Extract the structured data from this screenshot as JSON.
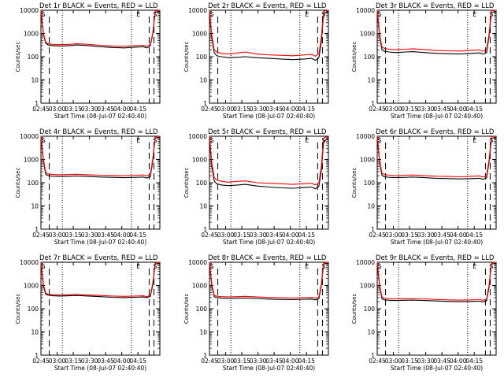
{
  "chart_data": [
    {
      "type": "line",
      "title": "Det 1r BLACK = Events, RED = LLD",
      "xlabel": "Start Time (08-Jul-07 02:40:40)",
      "ylabel": "Counts/sec",
      "xlim": [
        0,
        100
      ],
      "ylim": [
        1,
        10000
      ],
      "yscale": "log",
      "x_ticks": [
        "02:45",
        "03:00",
        "03:15",
        "03:30",
        "03:45",
        "04:00",
        "04:15"
      ],
      "y_ticks": [
        "1",
        "10",
        "100",
        "1000",
        "10000"
      ],
      "grid": false,
      "legend": "none",
      "markers": [
        "S",
        "E",
        "S"
      ],
      "series": [
        {
          "name": "Events",
          "color": "#000000",
          "x": [
            0,
            2,
            4,
            6,
            10,
            16,
            24,
            30,
            40,
            50,
            60,
            70,
            80,
            86,
            89,
            92,
            94,
            96,
            100
          ],
          "values": [
            9000,
            1000,
            380,
            320,
            300,
            290,
            300,
            320,
            300,
            270,
            250,
            240,
            260,
            270,
            240,
            300,
            900,
            8000,
            9000
          ]
        },
        {
          "name": "LLD",
          "color": "#ff0000",
          "x": [
            0,
            2,
            4,
            6,
            10,
            16,
            24,
            30,
            40,
            50,
            60,
            70,
            80,
            86,
            89,
            92,
            94,
            96,
            100
          ],
          "values": [
            10000,
            1100,
            420,
            360,
            340,
            330,
            340,
            360,
            340,
            310,
            290,
            280,
            300,
            310,
            280,
            340,
            1000,
            9000,
            10000
          ]
        }
      ]
    },
    {
      "type": "line",
      "title": "Det 2r BLACK = Events, RED = LLD",
      "xlabel": "Start Time (08-Jul-07 02:40:40)",
      "ylabel": "Counts/sec",
      "xlim": [
        0,
        100
      ],
      "ylim": [
        1,
        10000
      ],
      "yscale": "log",
      "x_ticks": [
        "02:45",
        "03:00",
        "03:15",
        "03:30",
        "03:45",
        "04:00",
        "04:15"
      ],
      "y_ticks": [
        "1",
        "10",
        "100",
        "1000",
        "10000"
      ],
      "grid": false,
      "legend": "none",
      "markers": [
        "S",
        "E",
        "S"
      ],
      "series": [
        {
          "name": "Events",
          "color": "#000000",
          "x": [
            0,
            2,
            4,
            6,
            10,
            16,
            24,
            30,
            40,
            50,
            60,
            70,
            80,
            86,
            89,
            92,
            94,
            96,
            100
          ],
          "values": [
            8000,
            600,
            150,
            110,
            100,
            90,
            95,
            100,
            90,
            85,
            80,
            75,
            80,
            85,
            70,
            90,
            400,
            7000,
            9000
          ]
        },
        {
          "name": "LLD",
          "color": "#ff0000",
          "x": [
            0,
            2,
            4,
            6,
            10,
            16,
            24,
            30,
            40,
            50,
            60,
            70,
            80,
            86,
            89,
            92,
            94,
            96,
            100
          ],
          "values": [
            10000,
            800,
            200,
            160,
            140,
            130,
            145,
            160,
            130,
            120,
            115,
            110,
            120,
            125,
            105,
            130,
            600,
            9000,
            10000
          ]
        }
      ]
    },
    {
      "type": "line",
      "title": "Det 3r BLACK = Events, RED = LLD",
      "xlabel": "Start Time (08-Jul-07 02:40:40)",
      "ylabel": "Counts/sec",
      "xlim": [
        0,
        100
      ],
      "ylim": [
        1,
        10000
      ],
      "yscale": "log",
      "x_ticks": [
        "02:45",
        "03:00",
        "03:15",
        "03:30",
        "03:45",
        "04:00",
        "04:15"
      ],
      "y_ticks": [
        "1",
        "10",
        "100",
        "1000",
        "10000"
      ],
      "grid": false,
      "legend": "none",
      "markers": [
        "S",
        "E",
        "S"
      ],
      "series": [
        {
          "name": "Events",
          "color": "#000000",
          "x": [
            0,
            2,
            4,
            6,
            10,
            16,
            24,
            30,
            40,
            50,
            60,
            70,
            80,
            86,
            89,
            92,
            94,
            96,
            100
          ],
          "values": [
            9000,
            800,
            200,
            170,
            160,
            150,
            160,
            165,
            150,
            140,
            135,
            130,
            140,
            145,
            130,
            150,
            700,
            8000,
            9000
          ]
        },
        {
          "name": "LLD",
          "color": "#ff0000",
          "x": [
            0,
            2,
            4,
            6,
            10,
            16,
            24,
            30,
            40,
            50,
            60,
            70,
            80,
            86,
            89,
            92,
            94,
            96,
            100
          ],
          "values": [
            10000,
            1000,
            260,
            230,
            210,
            200,
            210,
            220,
            200,
            185,
            180,
            175,
            190,
            195,
            170,
            200,
            900,
            9500,
            10000
          ]
        }
      ]
    },
    {
      "type": "line",
      "title": "Det 4r BLACK = Events, RED = LLD",
      "xlabel": "Start Time (08-Jul-07 02:40:40)",
      "ylabel": "Counts/sec",
      "xlim": [
        0,
        100
      ],
      "ylim": [
        1,
        10000
      ],
      "yscale": "log",
      "x_ticks": [
        "02:45",
        "03:00",
        "03:15",
        "03:30",
        "03:45",
        "04:00",
        "04:15"
      ],
      "y_ticks": [
        "1",
        "10",
        "100",
        "1000",
        "10000"
      ],
      "grid": false,
      "legend": "none",
      "markers": [
        "S",
        "E",
        "S"
      ],
      "series": [
        {
          "name": "Events",
          "color": "#000000",
          "x": [
            0,
            2,
            4,
            6,
            10,
            16,
            24,
            30,
            40,
            50,
            60,
            70,
            80,
            86,
            89,
            92,
            94,
            96,
            100
          ],
          "values": [
            9000,
            900,
            230,
            200,
            190,
            185,
            190,
            195,
            185,
            175,
            170,
            165,
            170,
            175,
            160,
            180,
            800,
            8500,
            9000
          ]
        },
        {
          "name": "LLD",
          "color": "#ff0000",
          "x": [
            0,
            2,
            4,
            6,
            10,
            16,
            24,
            30,
            40,
            50,
            60,
            70,
            80,
            86,
            89,
            92,
            94,
            96,
            100
          ],
          "values": [
            10000,
            1100,
            280,
            240,
            225,
            220,
            225,
            230,
            220,
            210,
            205,
            200,
            210,
            215,
            195,
            220,
            1000,
            9500,
            10000
          ]
        }
      ]
    },
    {
      "type": "line",
      "title": "Det 5r BLACK = Events, RED = LLD",
      "xlabel": "Start Time (08-Jul-07 02:40:40)",
      "ylabel": "Counts/sec",
      "xlim": [
        0,
        100
      ],
      "ylim": [
        1,
        10000
      ],
      "yscale": "log",
      "x_ticks": [
        "02:45",
        "03:00",
        "03:15",
        "03:30",
        "03:45",
        "04:00",
        "04:15"
      ],
      "y_ticks": [
        "1",
        "10",
        "100",
        "1000",
        "10000"
      ],
      "grid": false,
      "legend": "none",
      "markers": [
        "S",
        "E",
        "S"
      ],
      "series": [
        {
          "name": "Events",
          "color": "#000000",
          "x": [
            0,
            2,
            4,
            6,
            10,
            16,
            24,
            30,
            40,
            50,
            60,
            70,
            80,
            86,
            89,
            92,
            94,
            96,
            100
          ],
          "values": [
            7000,
            500,
            120,
            90,
            80,
            75,
            80,
            85,
            72,
            65,
            60,
            58,
            62,
            65,
            55,
            70,
            300,
            6000,
            8000
          ]
        },
        {
          "name": "LLD",
          "color": "#ff0000",
          "x": [
            0,
            2,
            4,
            6,
            10,
            16,
            24,
            30,
            40,
            50,
            60,
            70,
            80,
            86,
            89,
            92,
            94,
            96,
            100
          ],
          "values": [
            10000,
            700,
            170,
            130,
            115,
            105,
            115,
            120,
            100,
            95,
            90,
            85,
            90,
            95,
            80,
            100,
            450,
            8500,
            10000
          ]
        }
      ]
    },
    {
      "type": "line",
      "title": "Det 6r BLACK = Events, RED = LLD",
      "xlabel": "Start Time (08-Jul-07 02:40:40)",
      "ylabel": "Counts/sec",
      "xlim": [
        0,
        100
      ],
      "ylim": [
        1,
        10000
      ],
      "yscale": "log",
      "x_ticks": [
        "02:45",
        "03:00",
        "03:15",
        "03:30",
        "03:45",
        "04:00",
        "04:15"
      ],
      "y_ticks": [
        "1",
        "10",
        "100",
        "1000",
        "10000"
      ],
      "grid": false,
      "legend": "none",
      "markers": [
        "S",
        "E",
        "S"
      ],
      "series": [
        {
          "name": "Events",
          "color": "#000000",
          "x": [
            0,
            2,
            4,
            6,
            10,
            16,
            24,
            30,
            40,
            50,
            60,
            70,
            80,
            86,
            89,
            92,
            94,
            96,
            100
          ],
          "values": [
            9000,
            800,
            210,
            180,
            170,
            165,
            170,
            175,
            165,
            155,
            150,
            145,
            150,
            155,
            140,
            160,
            700,
            8000,
            9000
          ]
        },
        {
          "name": "LLD",
          "color": "#ff0000",
          "x": [
            0,
            2,
            4,
            6,
            10,
            16,
            24,
            30,
            40,
            50,
            60,
            70,
            80,
            86,
            89,
            92,
            94,
            96,
            100
          ],
          "values": [
            10000,
            1000,
            260,
            225,
            210,
            200,
            210,
            215,
            200,
            190,
            185,
            180,
            190,
            195,
            175,
            200,
            900,
            9500,
            10000
          ]
        }
      ]
    },
    {
      "type": "line",
      "title": "Det 7r BLACK = Events, RED = LLD",
      "xlabel": "Start Time (08-Jul-07 02:40:40)",
      "ylabel": "Counts/sec",
      "xlim": [
        0,
        100
      ],
      "ylim": [
        1,
        10000
      ],
      "yscale": "log",
      "x_ticks": [
        "02:45",
        "03:00",
        "03:15",
        "03:30",
        "03:45",
        "04:00",
        "04:15"
      ],
      "y_ticks": [
        "1",
        "10",
        "100",
        "1000",
        "10000"
      ],
      "grid": false,
      "legend": "none",
      "markers": [
        "S",
        "E",
        "S"
      ],
      "series": [
        {
          "name": "Events",
          "color": "#000000",
          "x": [
            0,
            2,
            4,
            6,
            10,
            16,
            24,
            30,
            40,
            50,
            60,
            70,
            80,
            86,
            89,
            92,
            94,
            96,
            100
          ],
          "values": [
            9000,
            1000,
            420,
            380,
            360,
            350,
            360,
            370,
            350,
            330,
            310,
            300,
            310,
            320,
            300,
            340,
            1000,
            8500,
            9000
          ]
        },
        {
          "name": "LLD",
          "color": "#ff0000",
          "x": [
            0,
            2,
            4,
            6,
            10,
            16,
            24,
            30,
            40,
            50,
            60,
            70,
            80,
            86,
            89,
            92,
            94,
            96,
            100
          ],
          "values": [
            10000,
            1200,
            470,
            420,
            400,
            390,
            400,
            410,
            390,
            370,
            350,
            340,
            350,
            360,
            330,
            380,
            1200,
            9500,
            10000
          ]
        }
      ]
    },
    {
      "type": "line",
      "title": "Det 8r BLACK = Events, RED = LLD",
      "xlabel": "Start Time (08-Jul-07 02:40:40)",
      "ylabel": "Counts/sec",
      "xlim": [
        0,
        100
      ],
      "ylim": [
        1,
        10000
      ],
      "yscale": "log",
      "x_ticks": [
        "02:45",
        "03:00",
        "03:15",
        "03:30",
        "03:45",
        "04:00",
        "04:15"
      ],
      "y_ticks": [
        "1",
        "10",
        "100",
        "1000",
        "10000"
      ],
      "grid": false,
      "legend": "none",
      "markers": [
        "S",
        "E",
        "S"
      ],
      "series": [
        {
          "name": "Events",
          "color": "#000000",
          "x": [
            0,
            2,
            4,
            6,
            10,
            16,
            24,
            30,
            40,
            50,
            60,
            70,
            80,
            86,
            89,
            92,
            94,
            96,
            100
          ],
          "values": [
            9000,
            900,
            330,
            300,
            285,
            275,
            285,
            290,
            275,
            260,
            250,
            245,
            255,
            260,
            240,
            270,
            900,
            8500,
            9000
          ]
        },
        {
          "name": "LLD",
          "color": "#ff0000",
          "x": [
            0,
            2,
            4,
            6,
            10,
            16,
            24,
            30,
            40,
            50,
            60,
            70,
            80,
            86,
            89,
            92,
            94,
            96,
            100
          ],
          "values": [
            10000,
            1100,
            380,
            345,
            330,
            320,
            330,
            340,
            320,
            305,
            295,
            290,
            300,
            305,
            285,
            320,
            1100,
            9500,
            10000
          ]
        }
      ]
    },
    {
      "type": "line",
      "title": "Det 9r BLACK = Events, RED = LLD",
      "xlabel": "Start Time (08-Jul-07 02:40:40)",
      "ylabel": "Counts/sec",
      "xlim": [
        0,
        100
      ],
      "ylim": [
        1,
        10000
      ],
      "yscale": "log",
      "x_ticks": [
        "02:45",
        "03:00",
        "03:15",
        "03:30",
        "03:45",
        "04:00",
        "04:15"
      ],
      "y_ticks": [
        "1",
        "10",
        "100",
        "1000",
        "10000"
      ],
      "grid": false,
      "legend": "none",
      "markers": [
        "S",
        "E",
        "S"
      ],
      "series": [
        {
          "name": "Events",
          "color": "#000000",
          "x": [
            0,
            2,
            4,
            6,
            10,
            16,
            24,
            30,
            40,
            50,
            60,
            70,
            80,
            86,
            89,
            92,
            94,
            96,
            100
          ],
          "values": [
            9000,
            900,
            270,
            240,
            230,
            225,
            230,
            235,
            225,
            215,
            205,
            200,
            205,
            210,
            195,
            220,
            800,
            8500,
            9000
          ]
        },
        {
          "name": "LLD",
          "color": "#ff0000",
          "x": [
            0,
            2,
            4,
            6,
            10,
            16,
            24,
            30,
            40,
            50,
            60,
            70,
            80,
            86,
            89,
            92,
            94,
            96,
            100
          ],
          "values": [
            10000,
            1100,
            320,
            285,
            270,
            265,
            270,
            275,
            265,
            250,
            240,
            235,
            240,
            245,
            230,
            260,
            1000,
            9500,
            10000
          ]
        }
      ]
    }
  ]
}
